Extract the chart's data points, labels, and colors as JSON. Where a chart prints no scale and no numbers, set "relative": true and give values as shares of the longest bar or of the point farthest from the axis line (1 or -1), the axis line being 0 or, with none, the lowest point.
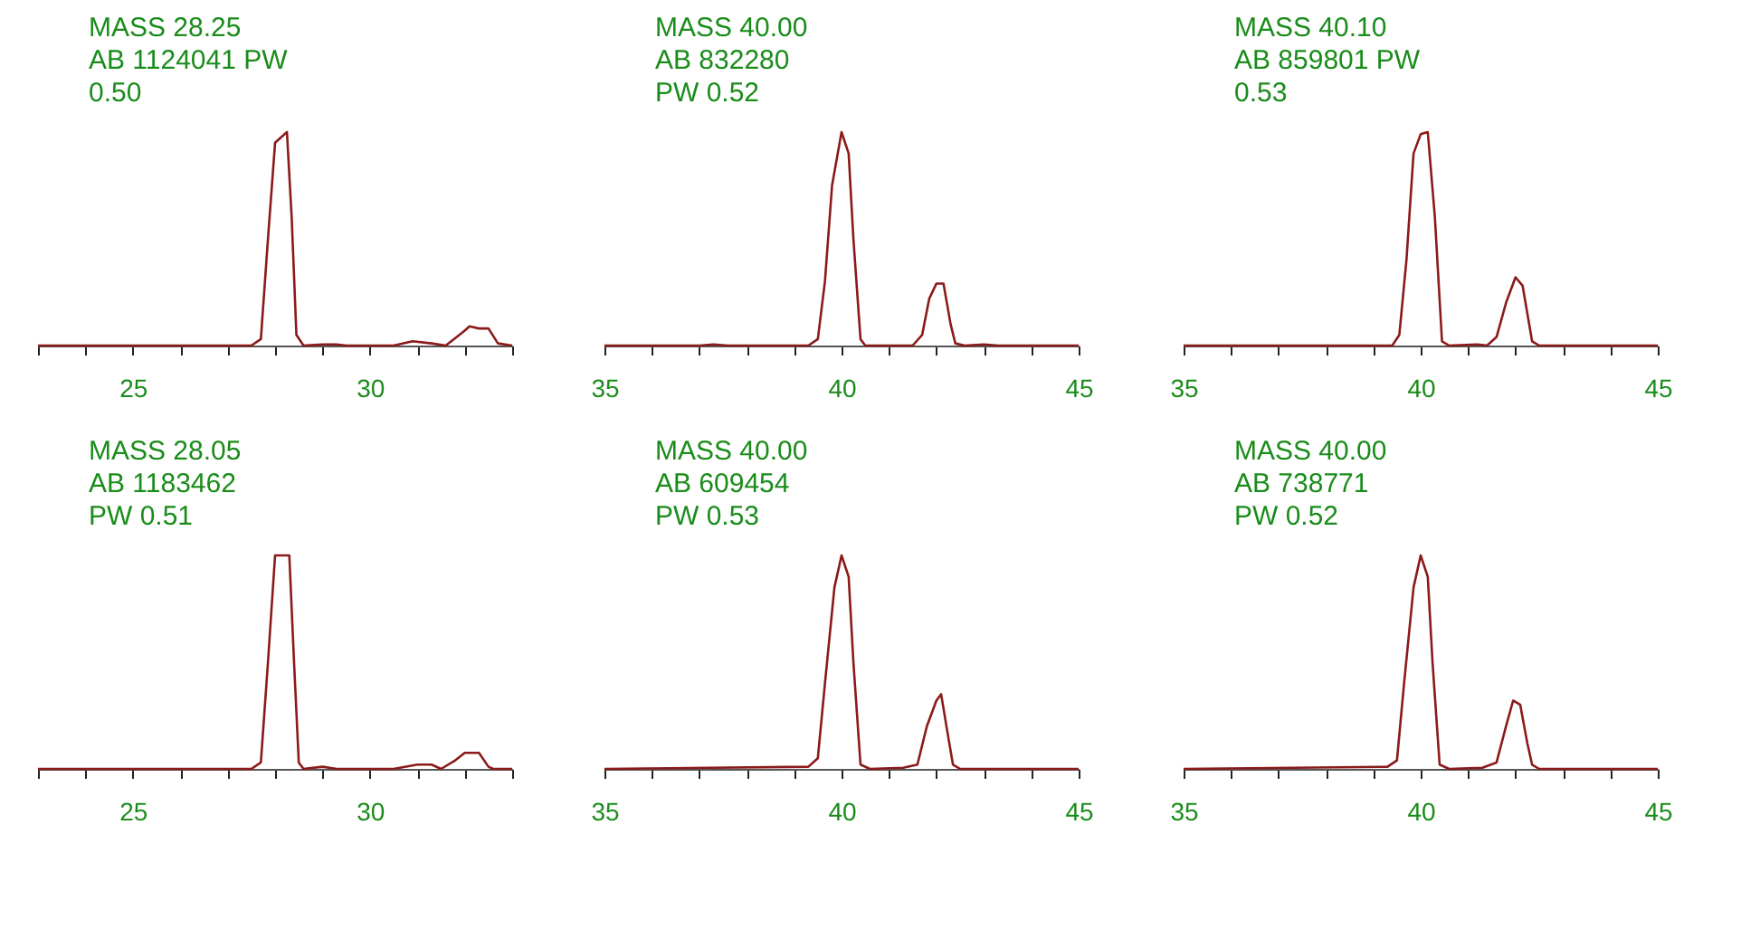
{
  "chart_data": [
    {
      "type": "line",
      "relative": true,
      "color": "#8b1a1a",
      "tick_labels": "x",
      "annotations": [
        "MASS   28.25",
        "AB 1124041 PW",
        "0.50"
      ],
      "xlim": [
        23,
        33
      ],
      "xticks": [
        {
          "value": 23,
          "label": null
        },
        {
          "value": 24,
          "label": null
        },
        25,
        {
          "value": 26,
          "label": null
        },
        {
          "value": 27,
          "label": null
        },
        {
          "value": 28,
          "label": null
        },
        {
          "value": 29,
          "label": null
        },
        30,
        {
          "value": 31,
          "label": null
        },
        {
          "value": 32,
          "label": null
        },
        {
          "value": 33,
          "label": null
        }
      ],
      "x": [
        23,
        27.5,
        27.7,
        27.85,
        28.0,
        28.25,
        28.35,
        28.45,
        28.6,
        29.0,
        29.3,
        29.5,
        30.5,
        30.9,
        31.3,
        31.6,
        32.0,
        32.1,
        32.3,
        32.5,
        32.7,
        33
      ],
      "values": [
        0,
        0,
        0.03,
        0.5,
        0.95,
        1.0,
        0.6,
        0.05,
        0,
        0.005,
        0.005,
        0,
        0,
        0.02,
        0.01,
        0,
        0.07,
        0.09,
        0.08,
        0.08,
        0.01,
        0
      ]
    },
    {
      "type": "line",
      "relative": true,
      "color": "#8b1a1a",
      "tick_labels": "x",
      "annotations": [
        "MASS   40.00",
        "AB  832280",
        "PW  0.52"
      ],
      "xlim": [
        35,
        45
      ],
      "xticks": [
        35,
        {
          "value": 36,
          "label": null
        },
        {
          "value": 37,
          "label": null
        },
        {
          "value": 38,
          "label": null
        },
        {
          "value": 39,
          "label": null
        },
        40,
        {
          "value": 41,
          "label": null
        },
        {
          "value": 42,
          "label": null
        },
        {
          "value": 43,
          "label": null
        },
        {
          "value": 44,
          "label": null
        },
        45
      ],
      "x": [
        35,
        37,
        37.3,
        37.6,
        39.3,
        39.5,
        39.65,
        39.8,
        40.0,
        40.15,
        40.25,
        40.4,
        40.5,
        41.5,
        41.7,
        41.85,
        42.0,
        42.15,
        42.3,
        42.4,
        42.6,
        43,
        43.3,
        45
      ],
      "values": [
        0,
        0,
        0.005,
        0,
        0,
        0.03,
        0.3,
        0.75,
        1.0,
        0.9,
        0.5,
        0.03,
        0,
        0,
        0.05,
        0.22,
        0.29,
        0.29,
        0.1,
        0.01,
        0,
        0.005,
        0,
        0
      ]
    },
    {
      "type": "line",
      "relative": true,
      "color": "#8b1a1a",
      "tick_labels": "x",
      "annotations": [
        "MASS   40.10",
        "AB  859801 PW",
        "0.53"
      ],
      "xlim": [
        35,
        45
      ],
      "xticks": [
        35,
        {
          "value": 36,
          "label": null
        },
        {
          "value": 37,
          "label": null
        },
        {
          "value": 38,
          "label": null
        },
        {
          "value": 39,
          "label": null
        },
        40,
        {
          "value": 41,
          "label": null
        },
        {
          "value": 42,
          "label": null
        },
        {
          "value": 43,
          "label": null
        },
        {
          "value": 44,
          "label": null
        },
        45
      ],
      "x": [
        35,
        39.4,
        39.55,
        39.7,
        39.85,
        40.0,
        40.15,
        40.3,
        40.45,
        40.6,
        41.2,
        41.4,
        41.6,
        41.8,
        42.0,
        42.15,
        42.35,
        42.5,
        45
      ],
      "values": [
        0,
        0,
        0.05,
        0.4,
        0.9,
        0.99,
        1.0,
        0.6,
        0.02,
        0,
        0.005,
        0,
        0.04,
        0.2,
        0.32,
        0.28,
        0.02,
        0,
        0
      ]
    },
    {
      "type": "line",
      "relative": true,
      "color": "#8b1a1a",
      "tick_labels": "x",
      "annotations": [
        "MASS   28.05",
        "AB 1183462",
        "PW  0.51"
      ],
      "xlim": [
        23,
        33
      ],
      "xticks": [
        {
          "value": 23,
          "label": null
        },
        {
          "value": 24,
          "label": null
        },
        25,
        {
          "value": 26,
          "label": null
        },
        {
          "value": 27,
          "label": null
        },
        {
          "value": 28,
          "label": null
        },
        {
          "value": 29,
          "label": null
        },
        30,
        {
          "value": 31,
          "label": null
        },
        {
          "value": 32,
          "label": null
        },
        {
          "value": 33,
          "label": null
        }
      ],
      "x": [
        23,
        27.5,
        27.7,
        27.85,
        28.0,
        28.3,
        28.4,
        28.5,
        28.6,
        29.0,
        29.3,
        30.5,
        31.0,
        31.3,
        31.5,
        31.8,
        32.0,
        32.3,
        32.5,
        32.6,
        33
      ],
      "values": [
        0,
        0,
        0.03,
        0.5,
        1.0,
        1.0,
        0.5,
        0.03,
        0,
        0.01,
        0,
        0,
        0.02,
        0.02,
        0,
        0.04,
        0.075,
        0.075,
        0.01,
        0,
        0
      ]
    },
    {
      "type": "line",
      "relative": true,
      "color": "#8b1a1a",
      "tick_labels": "x",
      "annotations": [
        "MASS   40.00",
        "AB  609454",
        "PW  0.53"
      ],
      "xlim": [
        35,
        45
      ],
      "xticks": [
        35,
        {
          "value": 36,
          "label": null
        },
        {
          "value": 37,
          "label": null
        },
        {
          "value": 38,
          "label": null
        },
        {
          "value": 39,
          "label": null
        },
        40,
        {
          "value": 41,
          "label": null
        },
        {
          "value": 42,
          "label": null
        },
        {
          "value": 43,
          "label": null
        },
        {
          "value": 44,
          "label": null
        },
        45
      ],
      "x": [
        35,
        39.3,
        39.5,
        39.65,
        39.85,
        40.0,
        40.15,
        40.25,
        40.4,
        40.6,
        41.3,
        41.6,
        41.8,
        42.0,
        42.1,
        42.25,
        42.35,
        42.5,
        45
      ],
      "values": [
        0,
        0.01,
        0.05,
        0.4,
        0.85,
        1.0,
        0.9,
        0.5,
        0.02,
        0,
        0.005,
        0.02,
        0.2,
        0.32,
        0.35,
        0.15,
        0.02,
        0,
        0
      ]
    },
    {
      "type": "line",
      "relative": true,
      "color": "#8b1a1a",
      "tick_labels": "x",
      "annotations": [
        "MASS   40.00",
        "AB  738771",
        "PW  0.52"
      ],
      "xlim": [
        35,
        45
      ],
      "xticks": [
        35,
        {
          "value": 36,
          "label": null
        },
        {
          "value": 37,
          "label": null
        },
        {
          "value": 38,
          "label": null
        },
        {
          "value": 39,
          "label": null
        },
        40,
        {
          "value": 41,
          "label": null
        },
        {
          "value": 42,
          "label": null
        },
        {
          "value": 43,
          "label": null
        },
        {
          "value": 44,
          "label": null
        },
        45
      ],
      "x": [
        35,
        39.3,
        39.5,
        39.65,
        39.85,
        40.0,
        40.15,
        40.25,
        40.4,
        40.6,
        41.3,
        41.6,
        41.8,
        41.95,
        42.1,
        42.25,
        42.35,
        42.5,
        45
      ],
      "values": [
        0,
        0.01,
        0.04,
        0.4,
        0.85,
        1.0,
        0.9,
        0.5,
        0.02,
        0,
        0.005,
        0.03,
        0.2,
        0.32,
        0.3,
        0.12,
        0.02,
        0,
        0
      ]
    }
  ]
}
